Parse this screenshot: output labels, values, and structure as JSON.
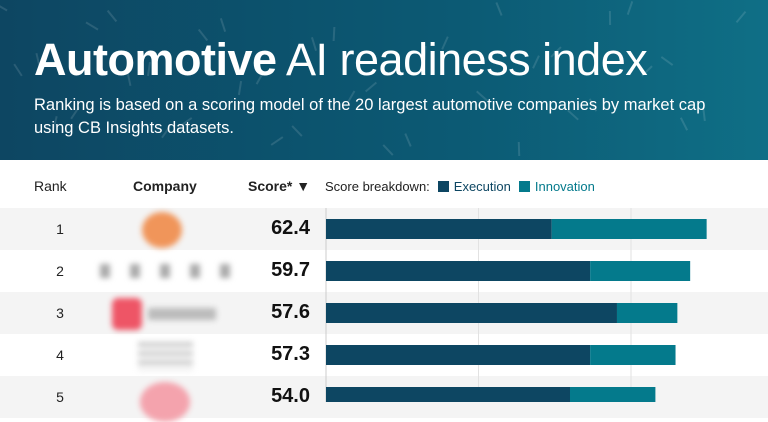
{
  "header": {
    "title_bold": "Automotive",
    "title_rest": " AI readiness index",
    "subtitle": "Ranking is based on a scoring model of the 20 largest automotive companies by market cap using CB Insights datasets."
  },
  "columns": {
    "rank": "Rank",
    "company": "Company",
    "score": "Score* ▼",
    "breakdown": "Score breakdown:"
  },
  "colors": {
    "header_bg": "#0d4662",
    "execution": "#0d4662",
    "innovation": "#047a8c"
  },
  "chart_data": {
    "type": "bar",
    "stacked": true,
    "orientation": "horizontal",
    "categories": [
      "1",
      "2",
      "3",
      "4",
      "5"
    ],
    "totals": [
      "62.4",
      "59.7",
      "57.6",
      "57.3",
      "54.0"
    ],
    "series": [
      {
        "name": "Execution",
        "values": [
          37.0,
          43.3,
          47.7,
          43.3,
          40.0
        ]
      },
      {
        "name": "Innovation",
        "values": [
          25.4,
          16.4,
          9.9,
          14.0,
          14.0
        ]
      }
    ],
    "xlim": [
      0,
      70
    ],
    "gridlines": [
      25,
      50
    ],
    "legend": "top"
  }
}
